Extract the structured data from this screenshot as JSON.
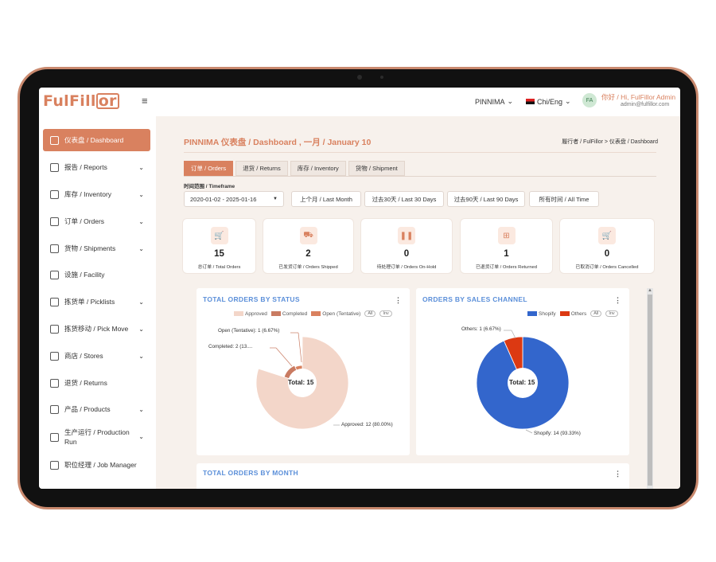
{
  "topbar": {
    "logo_text": "FulFill",
    "logo_boxed": "or",
    "hamburger": "≡",
    "org": "PINNIMA",
    "language": "Chi/Eng",
    "avatar": "FA",
    "user_name": "你好 / Hi, FulFillor Admin",
    "user_email": "admin@fulfillor.com"
  },
  "sidebar": {
    "items": [
      {
        "label": "仪表盘 / Dashboard",
        "icon": "dashboard-icon",
        "chevron": ""
      },
      {
        "label": "报告 / Reports",
        "icon": "reports-icon",
        "chevron": "⌄"
      },
      {
        "label": "库存 / Inventory",
        "icon": "inventory-icon",
        "chevron": "⌄"
      },
      {
        "label": "订单 / Orders",
        "icon": "orders-icon",
        "chevron": "⌄"
      },
      {
        "label": "货物 / Shipments",
        "icon": "shipments-icon",
        "chevron": "⌄"
      },
      {
        "label": "设施 / Facility",
        "icon": "facility-icon",
        "chevron": ""
      },
      {
        "label": "拣货单 / Picklists",
        "icon": "picklists-icon",
        "chevron": "⌄"
      },
      {
        "label": "拣货移动 / Pick Move",
        "icon": "pick-move-icon",
        "chevron": "⌄"
      },
      {
        "label": "商店 / Stores",
        "icon": "stores-icon",
        "chevron": "⌄"
      },
      {
        "label": "退货 / Returns",
        "icon": "returns-icon",
        "chevron": ""
      },
      {
        "label": "产品 / Products",
        "icon": "products-icon",
        "chevron": "⌄"
      },
      {
        "label": "生产运行 / Production Run",
        "icon": "production-icon",
        "chevron": "⌄"
      },
      {
        "label": "职位经理 / Job Manager",
        "icon": "job-manager-icon",
        "chevron": ""
      }
    ]
  },
  "main": {
    "title": "PINNIMA 仪表盘 / Dashboard , 一月 / January 10",
    "breadcrumb": "履行者 / FulFillor  >  仪表盘 / Dashboard",
    "tabs": [
      "订单 / Orders",
      "退货 / Returns",
      "库存 / Inventory",
      "货物 / Shipment"
    ],
    "timeframe_label": "时间范围 / Timeframe",
    "date_range": "2020-01-02 - 2025-01-16",
    "quick_ranges": [
      "上个月 / Last Month",
      "过去30天 / Last 30 Days",
      "过去90天 / Last 90 Days",
      "所有时间 / All Time"
    ],
    "stats": [
      {
        "value": "15",
        "label": "总订单 / Total Orders",
        "icon": "cart-icon",
        "glyph": "🛒"
      },
      {
        "value": "2",
        "label": "已发货订单 / Orders Shipped",
        "icon": "truck-icon",
        "glyph": "⛟"
      },
      {
        "value": "0",
        "label": "待处理订单 / Orders On-Hold",
        "icon": "pause-icon",
        "glyph": "❚❚"
      },
      {
        "value": "1",
        "label": "已退货订单 / Orders Returned",
        "icon": "return-box-icon",
        "glyph": "⊞"
      },
      {
        "value": "0",
        "label": "已取消订单 / Orders Cancelled",
        "icon": "cart-cancel-icon",
        "glyph": "🛒"
      }
    ]
  },
  "charts": {
    "status": {
      "title": "TOTAL ORDERS BY STATUS",
      "legend": [
        "Approved",
        "Completed",
        "Open (Tentative)"
      ],
      "pills": [
        "All",
        "Inv"
      ],
      "center_label": "Total: 15",
      "labels": [
        "Open (Tentative): 1 (6.67%)",
        "Completed: 2 (13....",
        "Approved: 12 (80.00%)"
      ]
    },
    "channel": {
      "title": "ORDERS BY SALES CHANNEL",
      "legend": [
        "Shopify",
        "Others"
      ],
      "pills": [
        "All",
        "Inv"
      ],
      "center_label": "Total: 15",
      "labels": [
        "Others: 1 (6.67%)",
        "Shopify: 14 (93.33%)"
      ]
    },
    "month": {
      "title": "TOTAL ORDERS BY MONTH"
    }
  },
  "chart_data": [
    {
      "type": "pie",
      "title": "TOTAL ORDERS BY STATUS",
      "categories": [
        "Approved",
        "Completed",
        "Open (Tentative)"
      ],
      "values": [
        12,
        2,
        1
      ],
      "percent": [
        80.0,
        13.33,
        6.67
      ],
      "colors": [
        "#f3d6c9",
        "#c97b62",
        "#d9815f"
      ],
      "total": 15,
      "legend": "top-right"
    },
    {
      "type": "pie",
      "title": "ORDERS BY SALES CHANNEL",
      "categories": [
        "Shopify",
        "Others"
      ],
      "values": [
        14,
        1
      ],
      "percent": [
        93.33,
        6.67
      ],
      "colors": [
        "#3366cc",
        "#dc3912"
      ],
      "total": 15,
      "legend": "top-right"
    }
  ],
  "colors": {
    "accent": "#d9815f",
    "chart_title": "#5b8fd9",
    "background": "#f7f1ec"
  }
}
